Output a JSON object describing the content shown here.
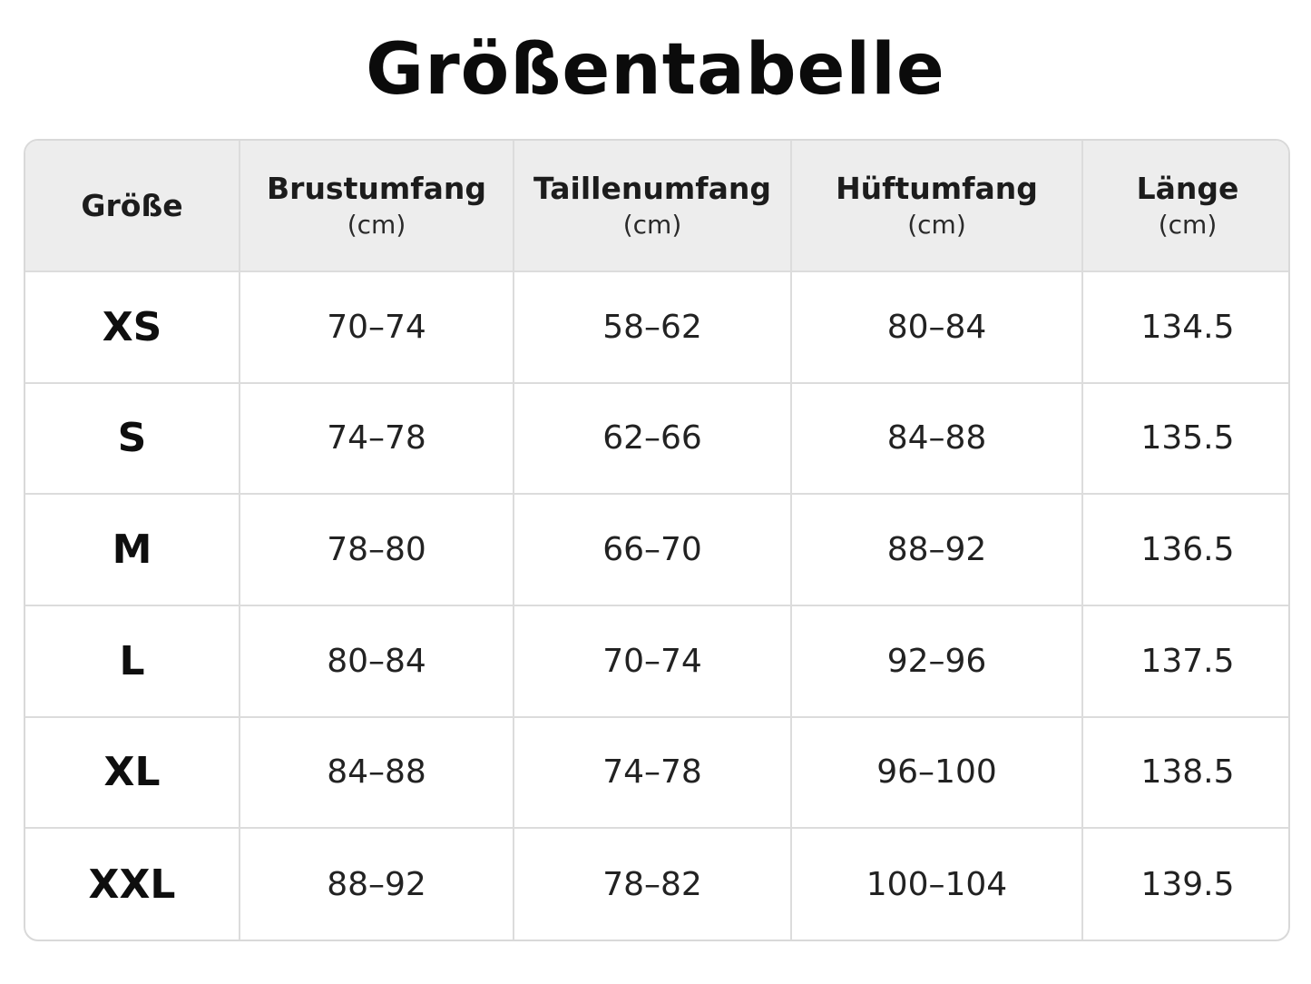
{
  "title": "Größentabelle",
  "table": {
    "headers": [
      {
        "label": "Größe",
        "unit": ""
      },
      {
        "label": "Brustumfang",
        "unit": "(cm)"
      },
      {
        "label": "Taillenumfang",
        "unit": "(cm)"
      },
      {
        "label": "Hüftumfang",
        "unit": "(cm)"
      },
      {
        "label": "Länge",
        "unit": "(cm)"
      }
    ],
    "rows": [
      {
        "size": "XS",
        "brust": "70–74",
        "taille": "58–62",
        "huefte": "80–84",
        "laenge": "134.5"
      },
      {
        "size": "S",
        "brust": "74–78",
        "taille": "62–66",
        "huefte": "84–88",
        "laenge": "135.5"
      },
      {
        "size": "M",
        "brust": "78–80",
        "taille": "66–70",
        "huefte": "88–92",
        "laenge": "136.5"
      },
      {
        "size": "L",
        "brust": "80–84",
        "taille": "70–74",
        "huefte": "92–96",
        "laenge": "137.5"
      },
      {
        "size": "XL",
        "brust": "84–88",
        "taille": "74–78",
        "huefte": "96–100",
        "laenge": "138.5"
      },
      {
        "size": "XXL",
        "brust": "88–92",
        "taille": "78–82",
        "huefte": "100–104",
        "laenge": "139.5"
      }
    ]
  }
}
